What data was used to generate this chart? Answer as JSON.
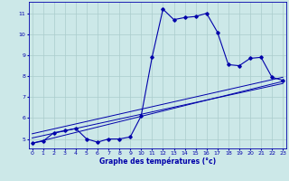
{
  "xlabel": "Graphe des températures (°c)",
  "bg_color": "#cce8e8",
  "grid_color": "#aacccc",
  "line_color": "#0000aa",
  "x_ticks": [
    0,
    1,
    2,
    3,
    4,
    5,
    6,
    7,
    8,
    9,
    10,
    11,
    12,
    13,
    14,
    15,
    16,
    17,
    18,
    19,
    20,
    21,
    22,
    23
  ],
  "y_ticks": [
    5,
    6,
    7,
    8,
    9,
    10,
    11
  ],
  "xlim": [
    -0.3,
    23.3
  ],
  "ylim": [
    4.55,
    11.55
  ],
  "temp_data": [
    [
      0,
      4.8
    ],
    [
      1,
      4.9
    ],
    [
      2,
      5.3
    ],
    [
      3,
      5.4
    ],
    [
      4,
      5.5
    ],
    [
      5,
      5.0
    ],
    [
      6,
      4.85
    ],
    [
      7,
      5.0
    ],
    [
      8,
      5.0
    ],
    [
      9,
      5.1
    ],
    [
      10,
      6.1
    ],
    [
      11,
      8.9
    ],
    [
      12,
      11.2
    ],
    [
      13,
      10.7
    ],
    [
      14,
      10.8
    ],
    [
      15,
      10.85
    ],
    [
      16,
      11.0
    ],
    [
      17,
      10.1
    ],
    [
      18,
      8.55
    ],
    [
      19,
      8.5
    ],
    [
      20,
      8.85
    ],
    [
      21,
      8.9
    ],
    [
      22,
      7.95
    ],
    [
      23,
      7.8
    ]
  ],
  "reg_line1": [
    [
      0,
      4.8
    ],
    [
      23,
      7.75
    ]
  ],
  "reg_line2": [
    [
      0,
      5.05
    ],
    [
      23,
      7.65
    ]
  ],
  "reg_line3": [
    [
      0,
      5.25
    ],
    [
      23,
      7.95
    ]
  ]
}
